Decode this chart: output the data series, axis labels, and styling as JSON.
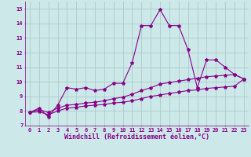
{
  "xlabel": "Windchill (Refroidissement éolien,°C)",
  "xlim": [
    -0.5,
    23.5
  ],
  "ylim": [
    7,
    15.5
  ],
  "yticks": [
    7,
    8,
    9,
    10,
    11,
    12,
    13,
    14,
    15
  ],
  "xticks": [
    0,
    1,
    2,
    3,
    4,
    5,
    6,
    7,
    8,
    9,
    10,
    11,
    12,
    13,
    14,
    15,
    16,
    17,
    18,
    19,
    20,
    21,
    22,
    23
  ],
  "background_color": "#cce8e8",
  "grid_color": "#aacccc",
  "line_color": "#880088",
  "line1_y": [
    7.9,
    8.2,
    7.6,
    8.4,
    9.6,
    9.5,
    9.6,
    9.4,
    9.5,
    9.9,
    9.9,
    11.3,
    13.85,
    13.85,
    14.95,
    13.85,
    13.85,
    12.2,
    9.6,
    11.5,
    11.5,
    11.0,
    10.5,
    10.2
  ],
  "line2_y": [
    7.9,
    8.1,
    7.9,
    8.2,
    8.4,
    8.45,
    8.55,
    8.6,
    8.7,
    8.85,
    8.95,
    9.15,
    9.4,
    9.6,
    9.85,
    9.95,
    10.05,
    10.15,
    10.25,
    10.35,
    10.4,
    10.45,
    10.5,
    10.2
  ],
  "line3_y": [
    7.9,
    7.95,
    7.75,
    8.0,
    8.2,
    8.25,
    8.35,
    8.4,
    8.45,
    8.55,
    8.6,
    8.7,
    8.85,
    9.0,
    9.1,
    9.2,
    9.3,
    9.4,
    9.45,
    9.55,
    9.6,
    9.65,
    9.7,
    10.2
  ],
  "marker": "*",
  "markersize": 3.0,
  "linewidth": 0.8,
  "tick_fontsize": 5.0,
  "xlabel_fontsize": 6.0
}
